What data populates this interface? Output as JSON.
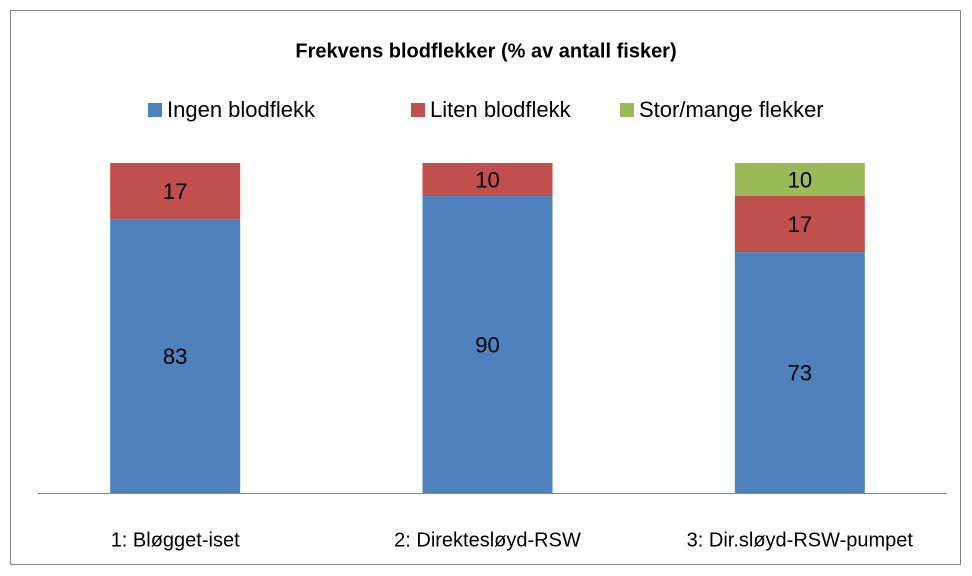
{
  "chart_data": {
    "type": "stacked_bar",
    "title": "Frekvens blodflekker (% av antall fisker)",
    "categories": [
      "1: Bløgget-iset",
      "2: Direktesløyd-RSW",
      "3: Dir.sløyd-RSW-pumpet"
    ],
    "series": [
      {
        "name": "Ingen blodflekk",
        "color": "#4f81bd",
        "values": [
          83,
          90,
          73
        ]
      },
      {
        "name": "Liten blodflekk",
        "color": "#c0504d",
        "values": [
          17,
          10,
          17
        ]
      },
      {
        "name": "Stor/mange flekker",
        "color": "#9bbb59",
        "values": [
          null,
          null,
          10
        ]
      }
    ],
    "legend": "top"
  }
}
